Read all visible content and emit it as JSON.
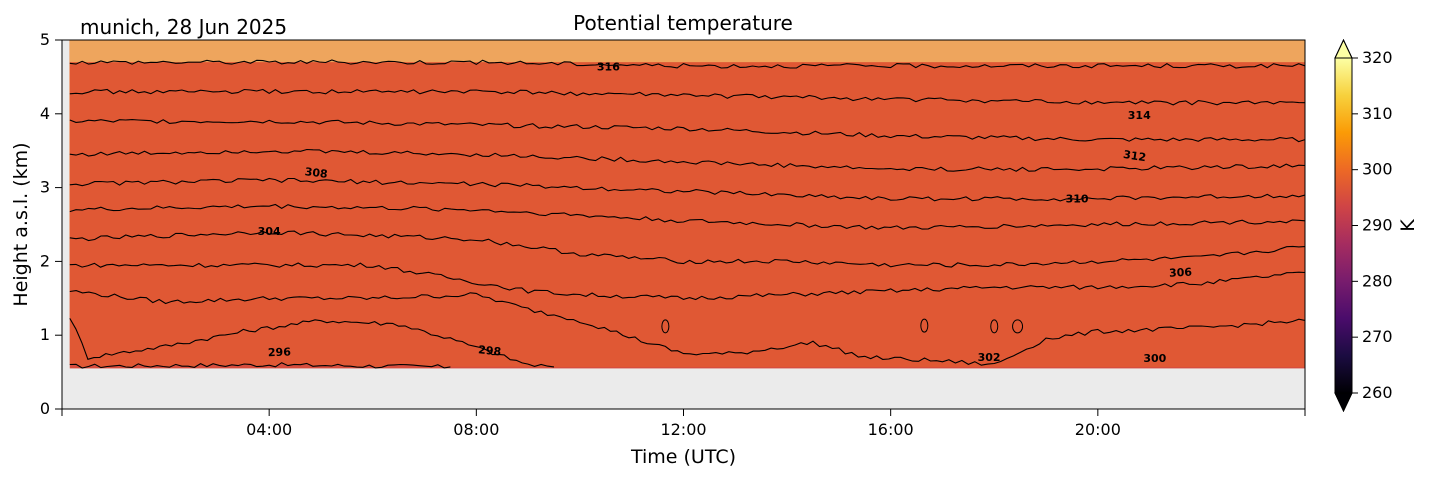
{
  "chart_data": {
    "type": "contourf",
    "title": "Potential temperature",
    "subtitle": "munich, 28 Jun 2025",
    "xlabel": "Time (UTC)",
    "ylabel": "Height a.s.l. (km)",
    "xlim": [
      0,
      24
    ],
    "ylim": [
      0,
      5
    ],
    "xticks": [
      {
        "value": 4,
        "label": "04:00"
      },
      {
        "value": 8,
        "label": "08:00"
      },
      {
        "value": 12,
        "label": "12:00"
      },
      {
        "value": 16,
        "label": "16:00"
      },
      {
        "value": 20,
        "label": "20:00"
      }
    ],
    "yticks": [
      {
        "value": 0,
        "label": "0"
      },
      {
        "value": 1,
        "label": "1"
      },
      {
        "value": 2,
        "label": "2"
      },
      {
        "value": 3,
        "label": "3"
      },
      {
        "value": 4,
        "label": "4"
      },
      {
        "value": 5,
        "label": "5"
      }
    ],
    "data_extent": {
      "time_start": 0.15,
      "time_end": 24,
      "height_min": 0.55,
      "height_max": 5
    },
    "contour_levels": [
      {
        "level": 296,
        "shape": [
          [
            0.15,
            0.58
          ],
          [
            4,
            0.6
          ],
          [
            7.5,
            0.57
          ]
        ]
      },
      {
        "level": 298,
        "shape": [
          [
            0.15,
            1.25
          ],
          [
            0.5,
            0.7
          ],
          [
            2,
            0.85
          ],
          [
            3.5,
            1.05
          ],
          [
            5,
            1.2
          ],
          [
            6.5,
            1.15
          ],
          [
            7.5,
            0.95
          ],
          [
            9,
            0.6
          ],
          [
            9.5,
            0.57
          ]
        ],
        "open_end": true
      },
      {
        "level": 300,
        "shape": [
          [
            0.15,
            1.6
          ],
          [
            2,
            1.45
          ],
          [
            4,
            1.5
          ],
          [
            6,
            1.5
          ],
          [
            8,
            1.55
          ],
          [
            9,
            1.35
          ],
          [
            10,
            1.2
          ],
          [
            11.3,
            0.9
          ],
          [
            12,
            0.75
          ],
          [
            13,
            0.75
          ],
          [
            14.5,
            0.9
          ],
          [
            15.5,
            0.7
          ],
          [
            17,
            0.65
          ],
          [
            18,
            0.6
          ],
          [
            19,
            0.95
          ],
          [
            20,
            1.05
          ],
          [
            22,
            1.1
          ],
          [
            24,
            1.2
          ]
        ]
      },
      {
        "level": 302,
        "shape": [
          [
            0.15,
            1.95
          ],
          [
            3,
            1.95
          ],
          [
            6,
            1.95
          ],
          [
            9,
            1.6
          ],
          [
            10,
            1.55
          ],
          [
            12,
            1.5
          ],
          [
            14,
            1.55
          ],
          [
            16,
            1.6
          ],
          [
            18,
            1.65
          ],
          [
            20,
            1.65
          ],
          [
            22,
            1.7
          ],
          [
            24,
            1.85
          ]
        ]
      },
      {
        "level": 304,
        "shape": [
          [
            0.15,
            2.3
          ],
          [
            4,
            2.4
          ],
          [
            8,
            2.3
          ],
          [
            10,
            2.1
          ],
          [
            12,
            2.0
          ],
          [
            14,
            2.0
          ],
          [
            16,
            1.95
          ],
          [
            18,
            1.95
          ],
          [
            20,
            2.0
          ],
          [
            22,
            2.05
          ],
          [
            24,
            2.2
          ]
        ]
      },
      {
        "level": 306,
        "shape": [
          [
            0.15,
            2.7
          ],
          [
            4,
            2.75
          ],
          [
            8,
            2.7
          ],
          [
            12,
            2.55
          ],
          [
            16,
            2.45
          ],
          [
            20,
            2.5
          ],
          [
            24,
            2.55
          ]
        ]
      },
      {
        "level": 308,
        "shape": [
          [
            0.15,
            3.05
          ],
          [
            4,
            3.1
          ],
          [
            8,
            3.05
          ],
          [
            12,
            2.95
          ],
          [
            16,
            2.85
          ],
          [
            20,
            2.85
          ],
          [
            24,
            2.9
          ]
        ]
      },
      {
        "level": 310,
        "shape": [
          [
            0.15,
            3.45
          ],
          [
            4,
            3.5
          ],
          [
            8,
            3.45
          ],
          [
            12,
            3.35
          ],
          [
            16,
            3.25
          ],
          [
            20,
            3.25
          ],
          [
            24,
            3.3
          ]
        ]
      },
      {
        "level": 312,
        "shape": [
          [
            0.15,
            3.9
          ],
          [
            4,
            3.9
          ],
          [
            8,
            3.85
          ],
          [
            12,
            3.8
          ],
          [
            16,
            3.7
          ],
          [
            20,
            3.65
          ],
          [
            24,
            3.65
          ]
        ]
      },
      {
        "level": 314,
        "shape": [
          [
            0.15,
            4.3
          ],
          [
            4,
            4.3
          ],
          [
            8,
            4.3
          ],
          [
            12,
            4.25
          ],
          [
            16,
            4.2
          ],
          [
            20,
            4.15
          ],
          [
            24,
            4.15
          ]
        ]
      },
      {
        "level": 316,
        "shape": [
          [
            0.15,
            4.7
          ],
          [
            4,
            4.7
          ],
          [
            8,
            4.7
          ],
          [
            12,
            4.65
          ],
          [
            16,
            4.65
          ],
          [
            20,
            4.65
          ],
          [
            24,
            4.65
          ]
        ]
      }
    ],
    "contour_labels": [
      {
        "text": "296",
        "x": 4.2,
        "y": 0.72,
        "angle": -2
      },
      {
        "text": "298",
        "x": 8.25,
        "y": 0.74,
        "angle": 6
      },
      {
        "text": "300",
        "x": 21.1,
        "y": 0.64,
        "angle": 0
      },
      {
        "text": "302",
        "x": 17.9,
        "y": 0.65,
        "angle": 0
      },
      {
        "text": "304",
        "x": 4.0,
        "y": 2.36,
        "angle": 0
      },
      {
        "text": "306",
        "x": 21.6,
        "y": 1.8,
        "angle": -3
      },
      {
        "text": "308",
        "x": 4.9,
        "y": 3.15,
        "angle": 7
      },
      {
        "text": "310",
        "x": 19.6,
        "y": 2.8,
        "angle": 0
      },
      {
        "text": "312",
        "x": 20.7,
        "y": 3.38,
        "angle": 9
      },
      {
        "text": "314",
        "x": 20.8,
        "y": 3.93,
        "angle": 0
      },
      {
        "text": "316",
        "x": 10.55,
        "y": 4.59,
        "angle": 0
      }
    ],
    "small_islands": [
      {
        "x": 11.65,
        "y": 1.12
      },
      {
        "x": 16.65,
        "y": 1.13
      },
      {
        "x": 18.0,
        "y": 1.12
      },
      {
        "x": 18.45,
        "y": 1.12
      }
    ],
    "colorbar": {
      "label": "K",
      "min": 260,
      "max": 320,
      "ticks": [
        260,
        270,
        280,
        290,
        300,
        310,
        320
      ],
      "extend": "both",
      "colormap": "inferno",
      "colors": [
        "#000004",
        "#1b0c41",
        "#4a0c6b",
        "#781c6d",
        "#a52c60",
        "#cf4446",
        "#ed6925",
        "#fb9b06",
        "#f7d13d",
        "#fcffa4"
      ]
    },
    "background_color": "#ebebeb"
  }
}
